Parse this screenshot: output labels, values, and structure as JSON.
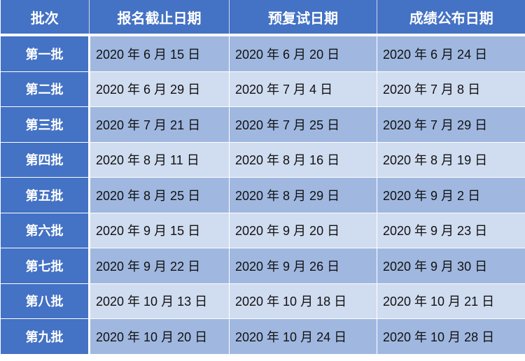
{
  "colors": {
    "header": "#4472c4",
    "row_dark": "#a0b8e0",
    "row_light": "#d0dcf0"
  },
  "headers": [
    "批次",
    "报名截止日期",
    "预复试日期",
    "成绩公布日期"
  ],
  "rows": [
    [
      "第一批",
      "2020 年 6 月 15 日",
      "2020 年 6 月 20 日",
      "2020 年 6 月 24 日"
    ],
    [
      "第二批",
      "2020 年 6 月 29 日",
      "2020 年 7 月 4 日",
      "2020 年 7 月 8 日"
    ],
    [
      "第三批",
      "2020 年 7 月 21 日",
      "2020 年 7 月 25 日",
      "2020 年 7 月 29 日"
    ],
    [
      "第四批",
      "2020 年 8 月 11 日",
      "2020 年 8 月 16 日",
      "2020 年 8 月 19 日"
    ],
    [
      "第五批",
      "2020 年 8 月 25 日",
      "2020 年 8 月 29 日",
      "2020 年 9 月 2 日"
    ],
    [
      "第六批",
      "2020 年 9 月 15 日",
      "2020 年 9 月 20 日",
      "2020 年 9 月 23 日"
    ],
    [
      "第七批",
      "2020 年 9 月 22 日",
      "2020 年 9 月 26 日",
      "2020 年 9 月 30 日"
    ],
    [
      "第八批",
      "2020 年 10 月 13 日",
      "2020 年 10 月 18 日",
      "2020 年 10 月 21 日"
    ],
    [
      "第九批",
      "2020 年 10 月 20 日",
      "2020 年 10 月 24 日",
      "2020 年 10 月 28 日"
    ]
  ]
}
